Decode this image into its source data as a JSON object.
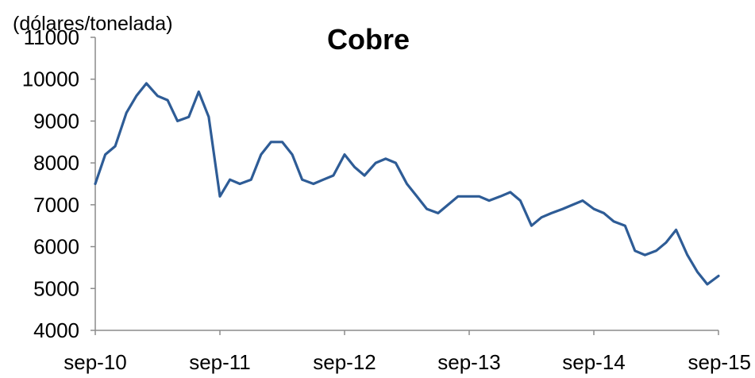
{
  "chart_data": {
    "type": "line",
    "title": "Cobre",
    "ylabel": "(dólares/tonelada)",
    "xlabel": "",
    "ylim": [
      4000,
      11000
    ],
    "y_ticks": [
      "4000",
      "5000",
      "6000",
      "7000",
      "8000",
      "9000",
      "10000",
      "11000"
    ],
    "x_ticks": [
      "sep-10",
      "sep-11",
      "sep-12",
      "sep-13",
      "sep-14",
      "sep-15"
    ],
    "grid": false,
    "color": "#2e5c96",
    "series": [
      {
        "x": [
          2010.67,
          2010.75,
          2010.83,
          2010.92,
          2011.0,
          2011.08,
          2011.17,
          2011.25,
          2011.33,
          2011.42,
          2011.5,
          2011.58,
          2011.67,
          2011.75,
          2011.83,
          2011.92,
          2012.0,
          2012.08,
          2012.17,
          2012.25,
          2012.33,
          2012.42,
          2012.5,
          2012.58,
          2012.67,
          2012.75,
          2012.83,
          2012.92,
          2013.0,
          2013.08,
          2013.17,
          2013.25,
          2013.33,
          2013.42,
          2013.5,
          2013.58,
          2013.67,
          2013.75,
          2013.83,
          2013.92,
          2014.0,
          2014.08,
          2014.17,
          2014.25,
          2014.33,
          2014.42,
          2014.5,
          2014.58,
          2014.67,
          2014.75,
          2014.83,
          2014.92,
          2015.0,
          2015.08,
          2015.17,
          2015.25,
          2015.33,
          2015.42,
          2015.5,
          2015.58,
          2015.67
        ],
        "values": [
          7500,
          8200,
          8400,
          9200,
          9600,
          9900,
          9600,
          9500,
          9000,
          9100,
          9700,
          9100,
          7200,
          7600,
          7500,
          7600,
          8200,
          8500,
          8500,
          8200,
          7600,
          7500,
          7600,
          7700,
          8200,
          7900,
          7700,
          8000,
          8100,
          8000,
          7500,
          7200,
          6900,
          6800,
          7000,
          7200,
          7200,
          7200,
          7100,
          7200,
          7300,
          7100,
          6500,
          6700,
          6800,
          6900,
          7000,
          7100,
          6900,
          6800,
          6600,
          6500,
          5900,
          5800,
          5900,
          6100,
          6400,
          5800,
          5400,
          5100,
          5300
        ]
      }
    ]
  }
}
